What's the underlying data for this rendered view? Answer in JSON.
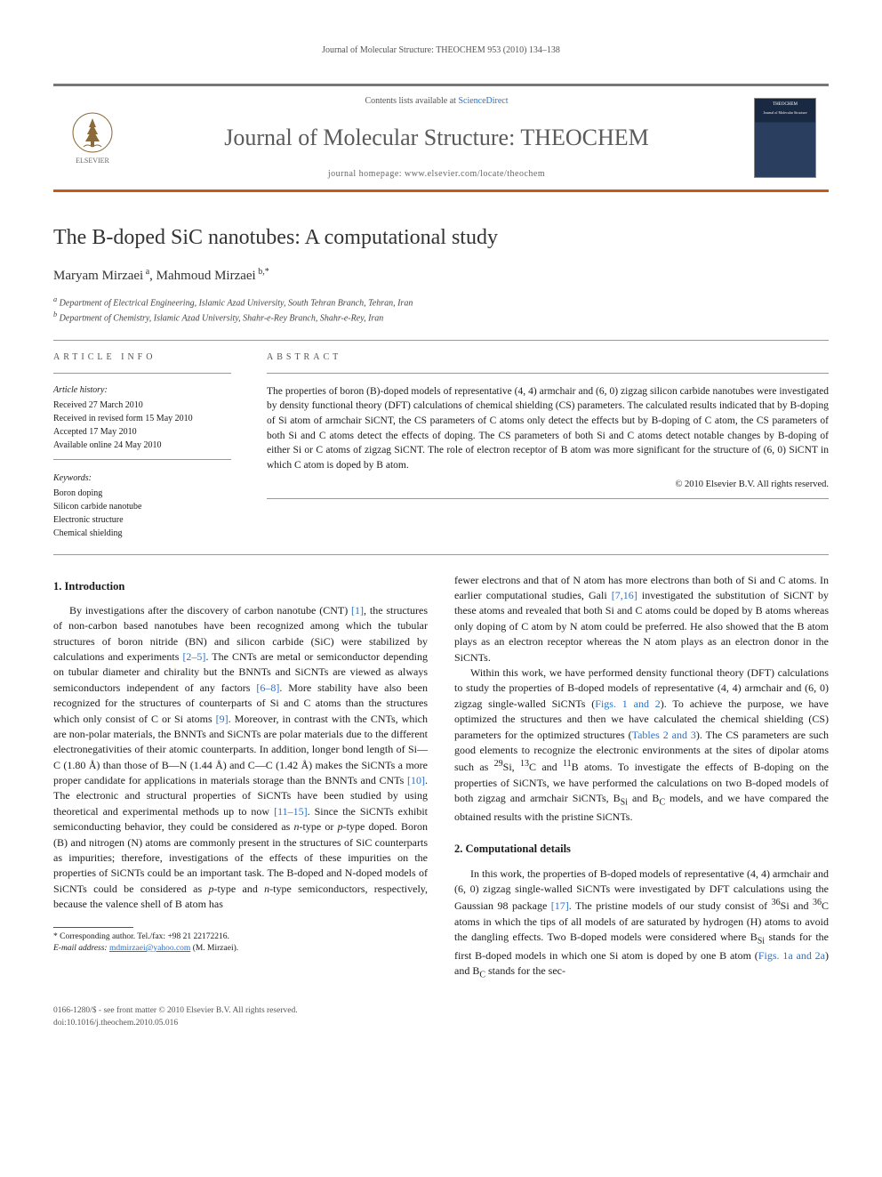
{
  "running_head": "Journal of Molecular Structure: THEOCHEM 953 (2010) 134–138",
  "masthead": {
    "contents_prefix": "Contents lists available at ",
    "contents_link": "ScienceDirect",
    "journal_title": "Journal of Molecular Structure: THEOCHEM",
    "homepage_label": "journal homepage: www.elsevier.com/locate/theochem",
    "publisher_name": "ELSEVIER",
    "cover_top": "THEOCHEM",
    "cover_sub": "Journal of Molecular Structure"
  },
  "article": {
    "title": "The B-doped SiC nanotubes: A computational study",
    "authors_html": "Maryam Mirzaei<sup> a</sup>, Mahmoud Mirzaei<sup> b,*</sup>",
    "affiliations": [
      "Department of Electrical Engineering, Islamic Azad University, South Tehran Branch, Tehran, Iran",
      "Department of Chemistry, Islamic Azad University, Shahr-e-Rey Branch, Shahr-e-Rey, Iran"
    ]
  },
  "info": {
    "label": "ARTICLE INFO",
    "history_head": "Article history:",
    "history": [
      "Received 27 March 2010",
      "Received in revised form 15 May 2010",
      "Accepted 17 May 2010",
      "Available online 24 May 2010"
    ],
    "keywords_head": "Keywords:",
    "keywords": [
      "Boron doping",
      "Silicon carbide nanotube",
      "Electronic structure",
      "Chemical shielding"
    ]
  },
  "abstract": {
    "label": "ABSTRACT",
    "text": "The properties of boron (B)-doped models of representative (4, 4) armchair and (6, 0) zigzag silicon carbide nanotubes were investigated by density functional theory (DFT) calculations of chemical shielding (CS) parameters. The calculated results indicated that by B-doping of Si atom of armchair SiCNT, the CS parameters of C atoms only detect the effects but by B-doping of C atom, the CS parameters of both Si and C atoms detect the effects of doping. The CS parameters of both Si and C atoms detect notable changes by B-doping of either Si or C atoms of zigzag SiCNT. The role of electron receptor of B atom was more significant for the structure of (6, 0) SiCNT in which C atom is doped by B atom.",
    "copyright": "© 2010 Elsevier B.V. All rights reserved."
  },
  "sections": {
    "s1_title": "1. Introduction",
    "s1_p1": "By investigations after the discovery of carbon nanotube (CNT) [1], the structures of non-carbon based nanotubes have been recognized among which the tubular structures of boron nitride (BN) and silicon carbide (SiC) were stabilized by calculations and experiments [2–5]. The CNTs are metal or semiconductor depending on tubular diameter and chirality but the BNNTs and SiCNTs are viewed as always semiconductors independent of any factors [6–8]. More stability have also been recognized for the structures of counterparts of Si and C atoms than the structures which only consist of C or Si atoms [9]. Moreover, in contrast with the CNTs, which are non-polar materials, the BNNTs and SiCNTs are polar materials due to the different electronegativities of their atomic counterparts. In addition, longer bond length of Si—C (1.80 Å) than those of B—N (1.44 Å) and C—C (1.42 Å) makes the SiCNTs a more proper candidate for applications in materials storage than the BNNTs and CNTs [10]. The electronic and structural properties of SiCNTs have been studied by using theoretical and experimental methods up to now [11–15]. Since the SiCNTs exhibit semiconducting behavior, they could be considered as n-type or p-type doped. Boron (B) and nitrogen (N) atoms are commonly present in the structures of SiC counterparts as impurities; therefore, investigations of the effects of these impurities on the properties of SiCNTs could be an important task. The B-doped and N-doped models of SiCNTs could be considered as p-type and n-type semiconductors, respectively, because the valence shell of B atom has ",
    "s1_p2": "fewer electrons and that of N atom has more electrons than both of Si and C atoms. In earlier computational studies, Gali [7,16] investigated the substitution of SiCNT by these atoms and revealed that both Si and C atoms could be doped by B atoms whereas only doping of C atom by N atom could be preferred. He also showed that the B atom plays as an electron receptor whereas the N atom plays as an electron donor in the SiCNTs.",
    "s1_p3": "Within this work, we have performed density functional theory (DFT) calculations to study the properties of B-doped models of representative (4, 4) armchair and (6, 0) zigzag single-walled SiCNTs (Figs. 1 and 2). To achieve the purpose, we have optimized the structures and then we have calculated the chemical shielding (CS) parameters for the optimized structures (Tables 2 and 3). The CS parameters are such good elements to recognize the electronic environments at the sites of dipolar atoms such as 29Si, 13C and 11B atoms. To investigate the effects of B-doping on the properties of SiCNTs, we have performed the calculations on two B-doped models of both zigzag and armchair SiCNTs, BSi and BC models, and we have compared the obtained results with the pristine SiCNTs.",
    "s2_title": "2. Computational details",
    "s2_p1": "In this work, the properties of B-doped models of representative (4, 4) armchair and (6, 0) zigzag single-walled SiCNTs were investigated by DFT calculations using the Gaussian 98 package [17]. The pristine models of our study consist of 36Si and 36C atoms in which the tips of all models of are saturated by hydrogen (H) atoms to avoid the dangling effects. Two B-doped models were considered where BSi stands for the first B-doped models in which one Si atom is doped by one B atom (Figs. 1a and 2a) and BC stands for the sec-"
  },
  "footnote": {
    "corr": "* Corresponding author. Tel./fax: +98 21 22172216.",
    "email_label": "E-mail address:",
    "email": "mdmirzaei@yahoo.com",
    "email_who": "(M. Mirzaei)."
  },
  "footer": {
    "line1": "0166-1280/$ - see front matter © 2010 Elsevier B.V. All rights reserved.",
    "line2": "doi:10.1016/j.theochem.2010.05.016"
  },
  "colors": {
    "accent_orange": "#c45a1a",
    "link_blue": "#2a72c7",
    "rule_gray": "#999999",
    "text_dark": "#1a1a1a"
  }
}
